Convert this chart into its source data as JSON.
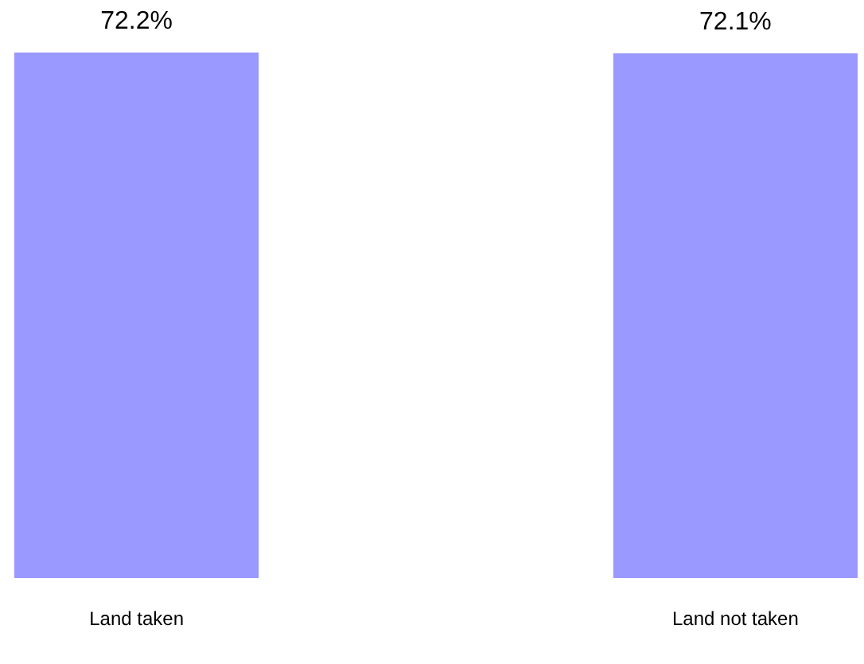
{
  "chart_data": {
    "type": "bar",
    "categories": [
      "Land taken",
      "Land not taken"
    ],
    "values": [
      72.2,
      72.1
    ],
    "color": "#9999ff",
    "value_labels": [
      "72.2%",
      "72.1%"
    ]
  }
}
